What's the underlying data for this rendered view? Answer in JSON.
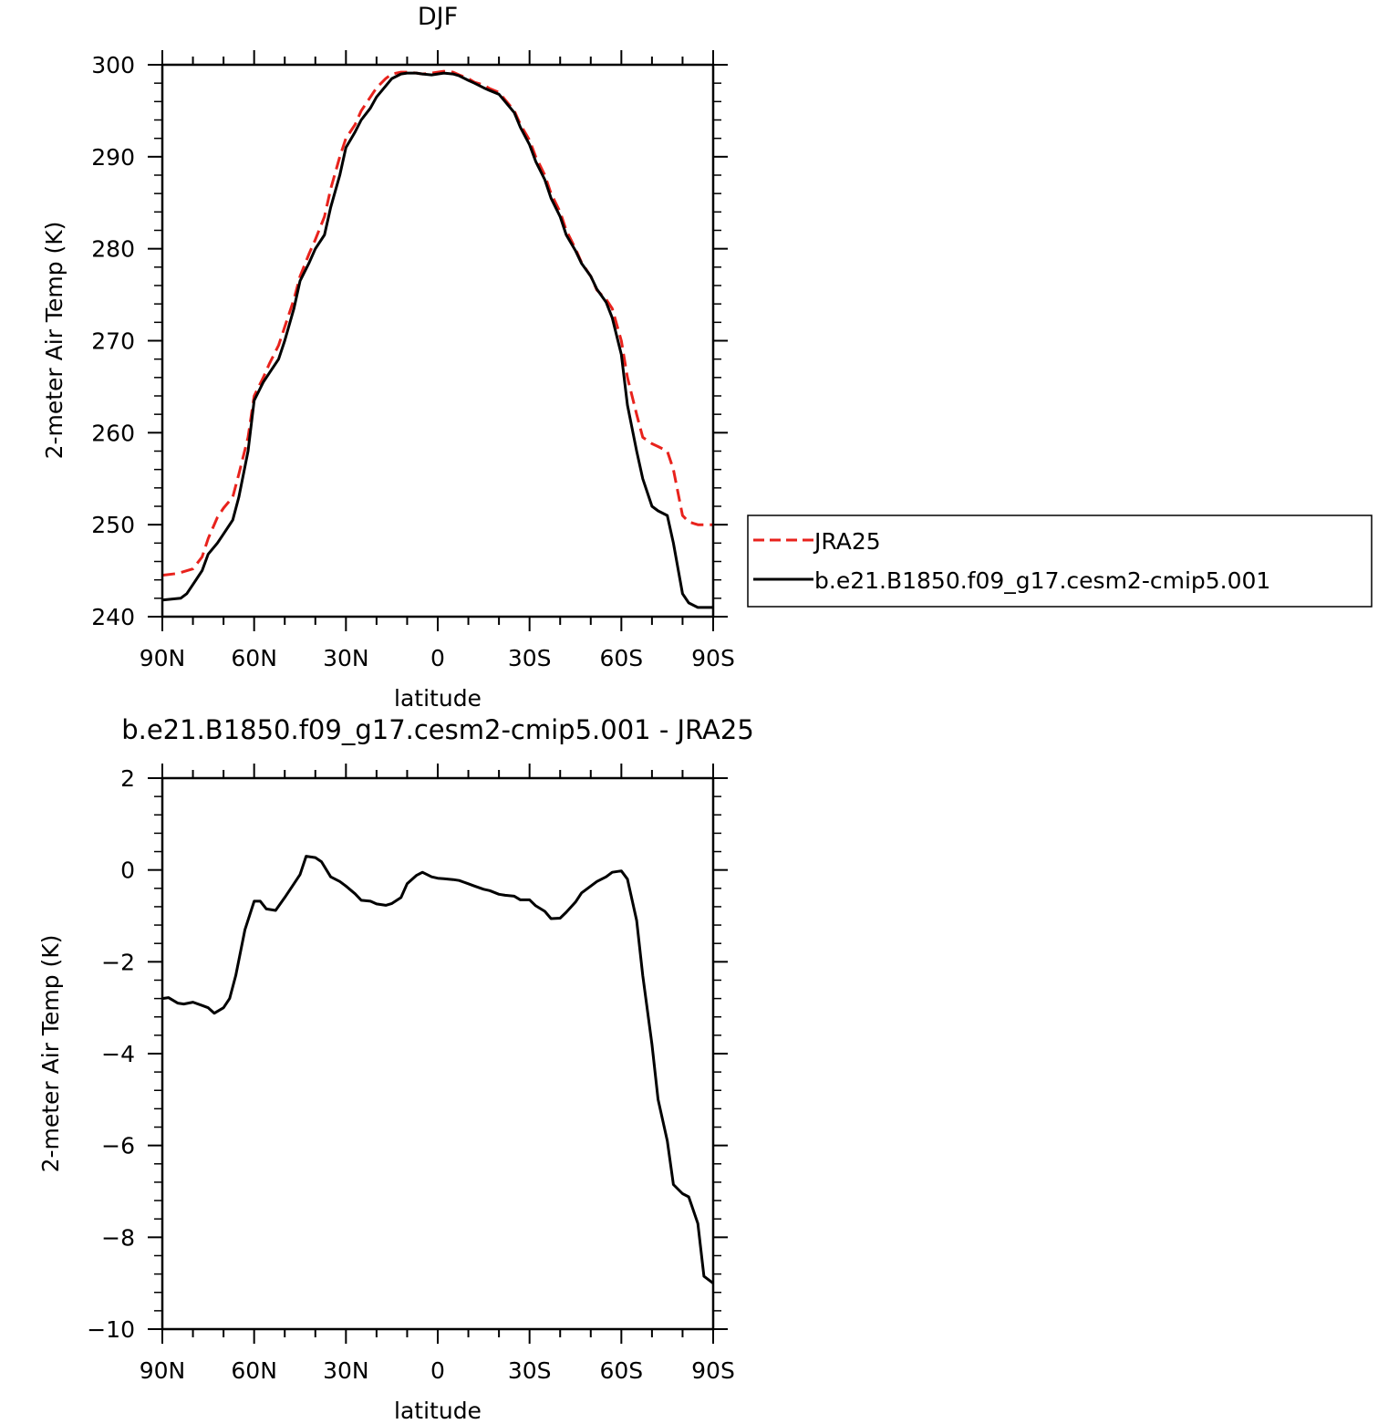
{
  "chart_data": [
    {
      "type": "line",
      "title": "DJF",
      "xlabel": "latitude",
      "ylabel": "2-meter Air Temp (K)",
      "xlim": [
        90,
        -90
      ],
      "ylim": [
        240,
        300
      ],
      "xticks": [
        90,
        60,
        30,
        0,
        -30,
        -60,
        -90
      ],
      "xtick_labels": [
        "90N",
        "60N",
        "30N",
        "0",
        "30S",
        "60S",
        "90S"
      ],
      "yticks": [
        240,
        250,
        260,
        270,
        280,
        290,
        300
      ],
      "ytick_labels": [
        "240",
        "250",
        "260",
        "270",
        "280",
        "290",
        "300"
      ],
      "legend": "right",
      "series": [
        {
          "name": "JRA25",
          "color": "#e8221c",
          "style": "dashed",
          "x": [
            90,
            85,
            80,
            77,
            75,
            72,
            70,
            67,
            65,
            62,
            60,
            57,
            55,
            52,
            50,
            47,
            45,
            42,
            40,
            37,
            35,
            32,
            30,
            27,
            25,
            22,
            20,
            17,
            15,
            12,
            10,
            7,
            5,
            2,
            0,
            -2,
            -5,
            -7,
            -10,
            -12,
            -15,
            -17,
            -20,
            -22,
            -25,
            -27,
            -30,
            -32,
            -35,
            -37,
            -40,
            -42,
            -45,
            -47,
            -50,
            -52,
            -55,
            -57,
            -60,
            -62,
            -65,
            -67,
            -70,
            -72,
            -75,
            -77,
            -80,
            -82,
            -85,
            -87,
            -90
          ],
          "values": [
            244.5,
            244.7,
            245.2,
            246.5,
            248.5,
            250.8,
            251.8,
            253.0,
            255.5,
            259.5,
            264.0,
            266.0,
            267.5,
            269.5,
            271.5,
            274.5,
            277.0,
            279.5,
            281.0,
            283.5,
            286.5,
            290.0,
            292.0,
            293.5,
            295.0,
            296.5,
            297.5,
            298.5,
            299.0,
            299.2,
            299.2,
            299.1,
            299.0,
            299.1,
            299.2,
            299.3,
            299.2,
            298.9,
            298.5,
            298.1,
            297.8,
            297.4,
            297.0,
            296.2,
            295.0,
            293.5,
            291.8,
            290.0,
            288.0,
            286.0,
            284.0,
            282.0,
            280.0,
            278.5,
            277.0,
            275.5,
            274.5,
            273.5,
            270.0,
            266.0,
            262.0,
            259.5,
            258.8,
            258.5,
            258.0,
            256.0,
            251.0,
            250.3,
            250.0,
            250.0,
            250.0
          ]
        },
        {
          "name": "b.e21.B1850.f09_g17.cesm2-cmip5.001",
          "color": "#000000",
          "style": "solid",
          "x": [
            90,
            87,
            84,
            82,
            80,
            77,
            75,
            72,
            70,
            67,
            65,
            62,
            60,
            57,
            55,
            52,
            50,
            47,
            45,
            42,
            40,
            37,
            35,
            32,
            30,
            27,
            25,
            22,
            20,
            17,
            15,
            12,
            10,
            7,
            5,
            2,
            0,
            -2,
            -5,
            -7,
            -10,
            -12,
            -15,
            -17,
            -20,
            -22,
            -25,
            -27,
            -30,
            -32,
            -35,
            -37,
            -40,
            -42,
            -45,
            -47,
            -50,
            -52,
            -55,
            -57,
            -60,
            -62,
            -65,
            -67,
            -70,
            -72,
            -75,
            -77,
            -80,
            -82,
            -85,
            -87,
            -90
          ],
          "values": [
            241.8,
            241.9,
            242.0,
            242.5,
            243.5,
            245.0,
            246.8,
            248.0,
            249.0,
            250.5,
            253.0,
            258.0,
            263.5,
            265.5,
            266.5,
            268.0,
            270.0,
            273.5,
            276.5,
            278.5,
            280.0,
            281.5,
            284.5,
            288.0,
            291.0,
            292.7,
            294.0,
            295.3,
            296.5,
            297.7,
            298.5,
            299.0,
            299.1,
            299.1,
            299.0,
            298.9,
            299.0,
            299.1,
            299.0,
            298.8,
            298.3,
            298.0,
            297.5,
            297.2,
            296.8,
            296.0,
            294.8,
            293.2,
            291.3,
            289.5,
            287.5,
            285.5,
            283.5,
            281.5,
            279.8,
            278.4,
            277.0,
            275.6,
            274.2,
            272.5,
            268.5,
            263.0,
            258.0,
            255.0,
            252.0,
            251.5,
            251.0,
            248.0,
            242.5,
            241.5,
            241.0,
            241.0,
            241.0
          ]
        }
      ]
    },
    {
      "type": "line",
      "title": "b.e21.B1850.f09_g17.cesm2-cmip5.001 - JRA25",
      "xlabel": "latitude",
      "ylabel": "2-meter Air Temp (K)",
      "xlim": [
        90,
        -90
      ],
      "ylim": [
        -10,
        2
      ],
      "xticks": [
        90,
        60,
        30,
        0,
        -30,
        -60,
        -90
      ],
      "xtick_labels": [
        "90N",
        "60N",
        "30N",
        "0",
        "30S",
        "60S",
        "90S"
      ],
      "yticks": [
        -10,
        -8,
        -6,
        -4,
        -2,
        0,
        2
      ],
      "ytick_labels": [
        "−10",
        "−8",
        "−6",
        "−4",
        "−2",
        "0",
        "2"
      ],
      "series": [
        {
          "color": "#000000",
          "style": "solid",
          "x": [
            90,
            88,
            85,
            83,
            80,
            77,
            75,
            73,
            70,
            68,
            66,
            63,
            60,
            58,
            56,
            53,
            50,
            47,
            45,
            43,
            40,
            38,
            35,
            32,
            30,
            27,
            25,
            22,
            20,
            17,
            15,
            12,
            10,
            7,
            5,
            2,
            0,
            -2,
            -5,
            -7,
            -10,
            -12,
            -15,
            -17,
            -20,
            -22,
            -25,
            -27,
            -30,
            -32,
            -35,
            -37,
            -40,
            -42,
            -45,
            -47,
            -50,
            -52,
            -55,
            -57,
            -60,
            -62,
            -65,
            -67,
            -70,
            -72,
            -75,
            -77,
            -80,
            -82,
            -85,
            -87,
            -90
          ],
          "values": [
            -2.8,
            -2.78,
            -2.9,
            -2.92,
            -2.88,
            -2.95,
            -3.0,
            -3.12,
            -3.0,
            -2.8,
            -2.3,
            -1.3,
            -0.68,
            -0.68,
            -0.85,
            -0.88,
            -0.6,
            -0.3,
            -0.1,
            0.3,
            0.27,
            0.18,
            -0.15,
            -0.25,
            -0.35,
            -0.52,
            -0.66,
            -0.68,
            -0.74,
            -0.77,
            -0.73,
            -0.6,
            -0.3,
            -0.12,
            -0.05,
            -0.15,
            -0.18,
            -0.19,
            -0.21,
            -0.23,
            -0.3,
            -0.35,
            -0.42,
            -0.45,
            -0.53,
            -0.55,
            -0.57,
            -0.65,
            -0.65,
            -0.78,
            -0.9,
            -1.06,
            -1.05,
            -0.92,
            -0.7,
            -0.5,
            -0.35,
            -0.25,
            -0.15,
            -0.05,
            -0.02,
            -0.2,
            -1.1,
            -2.3,
            -3.8,
            -5.0,
            -5.9,
            -6.85,
            -7.05,
            -7.12,
            -7.7,
            -8.85,
            -9.0
          ]
        }
      ]
    }
  ]
}
